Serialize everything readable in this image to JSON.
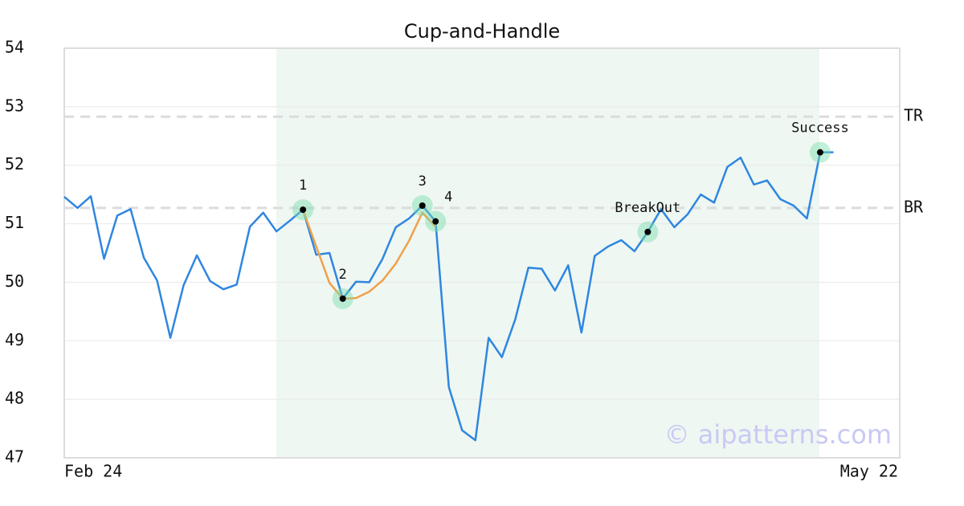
{
  "chart_data": {
    "type": "line",
    "title": "Cup-and-Handle",
    "categories": [
      "Feb 24",
      null,
      null,
      null,
      null,
      null,
      null,
      null,
      null,
      null,
      null,
      null,
      null,
      null,
      null,
      null,
      null,
      null,
      null,
      null,
      null,
      null,
      null,
      null,
      null,
      null,
      null,
      null,
      null,
      null,
      null,
      null,
      null,
      null,
      null,
      null,
      null,
      null,
      null,
      null,
      null,
      null,
      null,
      null,
      null,
      null,
      null,
      null,
      null,
      null,
      null,
      null,
      null,
      null,
      null,
      null,
      null,
      null,
      null,
      null,
      null,
      null,
      null,
      "May 22"
    ],
    "series": [
      {
        "color": "#2f86e0",
        "values": [
          51.46,
          51.27,
          51.47,
          50.4,
          51.14,
          51.25,
          50.42,
          50.03,
          49.05,
          49.95,
          50.46,
          50.02,
          49.88,
          49.96,
          50.95,
          51.19,
          50.87,
          51.05,
          51.24,
          50.47,
          50.5,
          49.72,
          50.01,
          50.0,
          50.4,
          50.94,
          51.09,
          51.31,
          51.04,
          48.21,
          47.47,
          47.3,
          49.05,
          48.72,
          49.36,
          50.25,
          50.23,
          49.86,
          50.29,
          49.14,
          50.45,
          50.61,
          50.72,
          50.53,
          50.86,
          51.25,
          50.94,
          51.16,
          51.5,
          51.36,
          51.97,
          52.13,
          51.67,
          51.74,
          51.42,
          51.31,
          51.09,
          52.22,
          52.22,
          null,
          null,
          null,
          null,
          null
        ]
      },
      {
        "color": "#f0a04b",
        "values": [
          null,
          null,
          null,
          null,
          null,
          null,
          null,
          null,
          null,
          null,
          null,
          null,
          null,
          null,
          null,
          null,
          null,
          null,
          51.24,
          50.61,
          49.99,
          49.72,
          49.73,
          49.84,
          50.03,
          50.32,
          50.71,
          51.19,
          50.95,
          null,
          null,
          null,
          null,
          null,
          null,
          null,
          null,
          null,
          null,
          null,
          null,
          null,
          null,
          null,
          null,
          null,
          null,
          null,
          null,
          null,
          null,
          null,
          null,
          null,
          null,
          null,
          null,
          null,
          null,
          null,
          null,
          null,
          null,
          null
        ]
      }
    ],
    "annotations": [
      {
        "label": "1",
        "index": 18,
        "value": 51.24
      },
      {
        "label": "2",
        "index": 21,
        "value": 49.72
      },
      {
        "label": "3",
        "index": 27,
        "value": 51.31
      },
      {
        "label": "4",
        "index": 28,
        "value": 51.04
      },
      {
        "label": "BreakOut",
        "index": 44,
        "value": 50.86
      },
      {
        "label": "Success",
        "index": 57,
        "value": 52.22
      }
    ],
    "reference_lines": [
      {
        "label": "TR",
        "value": 52.83
      },
      {
        "label": "BR",
        "value": 51.27
      }
    ],
    "ylim": [
      47,
      54
    ],
    "yticks": [
      47,
      48,
      49,
      50,
      51,
      52,
      53,
      54
    ],
    "grid": true,
    "watermark": "© aipatterns.com"
  }
}
